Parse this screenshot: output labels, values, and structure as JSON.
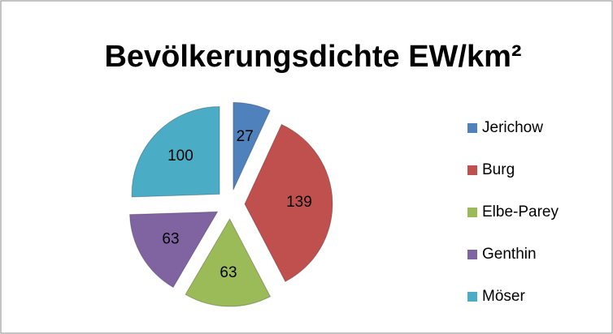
{
  "chart_data": {
    "type": "pie",
    "title": "Bevölkerungsdichte EW/km²",
    "categories": [
      "Jerichow",
      "Burg",
      "Elbe-Parey",
      "Genthin",
      "Möser"
    ],
    "values": [
      27,
      139,
      63,
      63,
      100
    ],
    "colors": [
      "#4f81bd",
      "#c0504d",
      "#9bbb59",
      "#8064a2",
      "#4bacc6"
    ],
    "legend": "right"
  }
}
